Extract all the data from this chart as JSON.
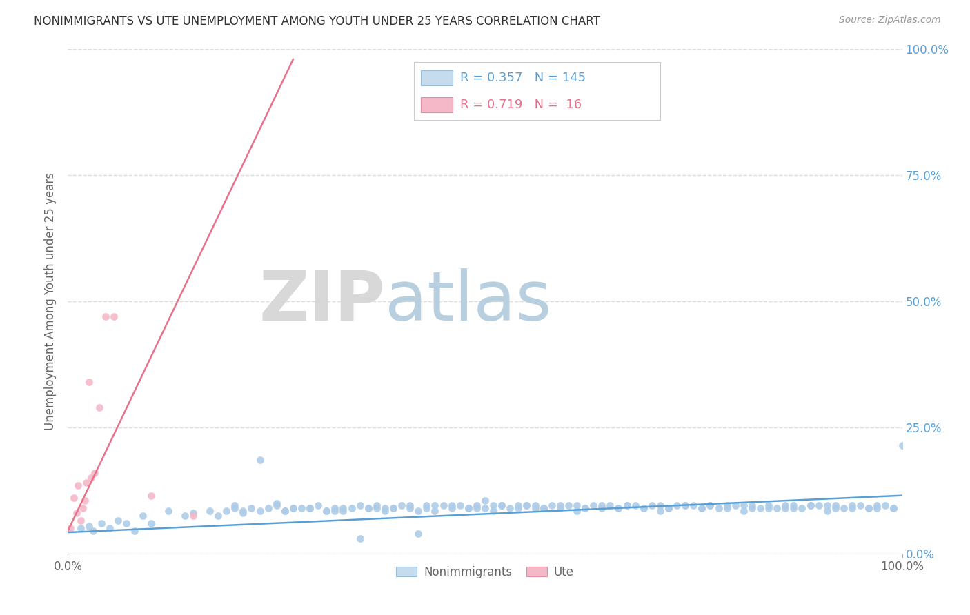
{
  "title": "NONIMMIGRANTS VS UTE UNEMPLOYMENT AMONG YOUTH UNDER 25 YEARS CORRELATION CHART",
  "source": "Source: ZipAtlas.com",
  "xlabel_ticks": [
    "0.0%",
    "100.0%"
  ],
  "ylabel": "Unemployment Among Youth under 25 years",
  "ylabel_ticks": [
    "100.0%",
    "75.0%",
    "50.0%",
    "25.0%",
    "0.0%"
  ],
  "ytick_vals": [
    1.0,
    0.75,
    0.5,
    0.25,
    0.0
  ],
  "legend_bottom": [
    "Nonimmigrants",
    "Ute"
  ],
  "legend_top": {
    "blue_R": "0.357",
    "blue_N": "145",
    "pink_R": "0.719",
    "pink_N": "16"
  },
  "blue_color": "#aecce8",
  "pink_color": "#f4b8c8",
  "blue_line_color": "#5a9fd4",
  "pink_line_color": "#e8708a",
  "watermark_zip": "ZIP",
  "watermark_atlas": "atlas",
  "blue_scatter_x": [
    0.015,
    0.025,
    0.03,
    0.04,
    0.05,
    0.06,
    0.07,
    0.08,
    0.09,
    0.1,
    0.12,
    0.14,
    0.15,
    0.17,
    0.18,
    0.19,
    0.2,
    0.21,
    0.22,
    0.23,
    0.24,
    0.25,
    0.26,
    0.27,
    0.28,
    0.29,
    0.3,
    0.31,
    0.32,
    0.33,
    0.34,
    0.35,
    0.36,
    0.37,
    0.38,
    0.39,
    0.4,
    0.41,
    0.42,
    0.43,
    0.44,
    0.45,
    0.46,
    0.47,
    0.48,
    0.49,
    0.5,
    0.51,
    0.52,
    0.53,
    0.54,
    0.55,
    0.56,
    0.57,
    0.58,
    0.59,
    0.6,
    0.61,
    0.62,
    0.63,
    0.64,
    0.65,
    0.66,
    0.67,
    0.68,
    0.69,
    0.7,
    0.71,
    0.72,
    0.73,
    0.74,
    0.75,
    0.76,
    0.77,
    0.78,
    0.79,
    0.8,
    0.81,
    0.82,
    0.83,
    0.84,
    0.85,
    0.86,
    0.87,
    0.88,
    0.89,
    0.9,
    0.91,
    0.92,
    0.93,
    0.94,
    0.95,
    0.96,
    0.97,
    0.98,
    0.99,
    1.0,
    0.5,
    0.55,
    0.43,
    0.37,
    0.29,
    0.25,
    0.35,
    0.41,
    0.48,
    0.52,
    0.57,
    0.62,
    0.67,
    0.72,
    0.77,
    0.82,
    0.87,
    0.92,
    0.97,
    0.2,
    0.26,
    0.32,
    0.38,
    0.44,
    0.49,
    0.54,
    0.59,
    0.64,
    0.69,
    0.74,
    0.79,
    0.84,
    0.89,
    0.94,
    0.99,
    0.21,
    0.23,
    0.27,
    0.31,
    0.33,
    0.36,
    0.39,
    0.42,
    0.46,
    0.51,
    0.56,
    0.61,
    0.66,
    0.71,
    0.76,
    0.81,
    0.86,
    0.91,
    0.96
  ],
  "blue_scatter_y": [
    0.05,
    0.055,
    0.045,
    0.06,
    0.05,
    0.065,
    0.06,
    0.045,
    0.075,
    0.06,
    0.085,
    0.075,
    0.08,
    0.085,
    0.075,
    0.085,
    0.09,
    0.08,
    0.09,
    0.185,
    0.09,
    0.1,
    0.085,
    0.09,
    0.09,
    0.09,
    0.095,
    0.085,
    0.085,
    0.09,
    0.09,
    0.095,
    0.09,
    0.095,
    0.085,
    0.09,
    0.095,
    0.09,
    0.04,
    0.09,
    0.085,
    0.095,
    0.095,
    0.095,
    0.09,
    0.095,
    0.09,
    0.095,
    0.095,
    0.09,
    0.095,
    0.095,
    0.095,
    0.09,
    0.095,
    0.09,
    0.095,
    0.095,
    0.09,
    0.095,
    0.095,
    0.095,
    0.09,
    0.095,
    0.095,
    0.09,
    0.095,
    0.095,
    0.09,
    0.095,
    0.095,
    0.095,
    0.09,
    0.095,
    0.09,
    0.095,
    0.095,
    0.095,
    0.095,
    0.09,
    0.095,
    0.09,
    0.095,
    0.095,
    0.09,
    0.095,
    0.095,
    0.095,
    0.095,
    0.09,
    0.095,
    0.095,
    0.09,
    0.095,
    0.095,
    0.09,
    0.215,
    0.105,
    0.095,
    0.095,
    0.09,
    0.09,
    0.095,
    0.03,
    0.095,
    0.09,
    0.095,
    0.09,
    0.09,
    0.095,
    0.09,
    0.095,
    0.09,
    0.09,
    0.09,
    0.09,
    0.095,
    0.085,
    0.09,
    0.09,
    0.095,
    0.09,
    0.09,
    0.095,
    0.09,
    0.09,
    0.095,
    0.09,
    0.09,
    0.095,
    0.09,
    0.09,
    0.085,
    0.085,
    0.09,
    0.085,
    0.085,
    0.09,
    0.09,
    0.085,
    0.09,
    0.085,
    0.09,
    0.085,
    0.09,
    0.085,
    0.09,
    0.085,
    0.09,
    0.085,
    0.09
  ],
  "pink_scatter_x": [
    0.003,
    0.007,
    0.01,
    0.012,
    0.015,
    0.018,
    0.02,
    0.022,
    0.025,
    0.028,
    0.032,
    0.038,
    0.045,
    0.055,
    0.1,
    0.15
  ],
  "pink_scatter_y": [
    0.05,
    0.11,
    0.08,
    0.135,
    0.065,
    0.09,
    0.105,
    0.14,
    0.34,
    0.15,
    0.16,
    0.29,
    0.47,
    0.47,
    0.115,
    0.075
  ],
  "blue_trendline_x": [
    0.0,
    1.0
  ],
  "blue_trendline_y": [
    0.042,
    0.115
  ],
  "pink_trendline_x": [
    0.0,
    0.27
  ],
  "pink_trendline_y": [
    0.045,
    0.98
  ],
  "xlim": [
    0.0,
    1.0
  ],
  "ylim": [
    0.0,
    1.0
  ],
  "grid_yticks": [
    0.0,
    0.25,
    0.5,
    0.75,
    1.0
  ],
  "grid_color": "#dddddd",
  "grid_style": "--",
  "bg_color": "#ffffff",
  "title_fontsize": 12,
  "axis_label_color": "#666666",
  "right_tick_color": "#5a9fd4"
}
